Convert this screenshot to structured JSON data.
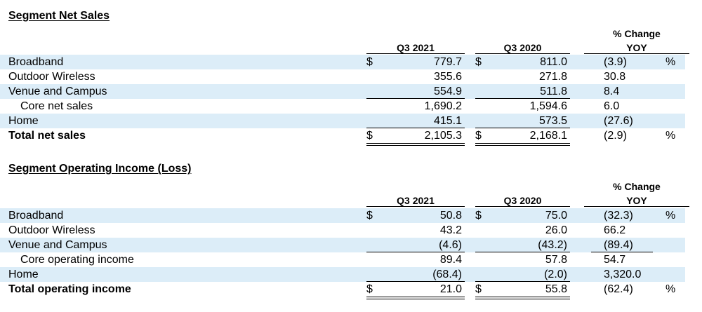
{
  "sales": {
    "title": "Segment Net Sales",
    "pct_header": "% Change",
    "yoy_header": "YOY",
    "q1_header": "Q3 2021",
    "q2_header": "Q3 2020",
    "rows": [
      {
        "label": "Broadband",
        "dol1": "$",
        "v1": "779.7",
        "dol2": "$",
        "v2": "811.0",
        "pct": "(3.9)",
        "pctsign": "%"
      },
      {
        "label": "Outdoor Wireless",
        "dol1": "",
        "v1": "355.6",
        "dol2": "",
        "v2": "271.8",
        "pct": "30.8",
        "pctsign": ""
      },
      {
        "label": "Venue and Campus",
        "dol1": "",
        "v1": "554.9",
        "dol2": "",
        "v2": "511.8",
        "pct": "8.4",
        "pctsign": ""
      },
      {
        "label": "Core net sales",
        "dol1": "",
        "v1": "1,690.2",
        "dol2": "",
        "v2": "1,594.6",
        "pct": "6.0",
        "pctsign": ""
      },
      {
        "label": "Home",
        "dol1": "",
        "v1": "415.1",
        "dol2": "",
        "v2": "573.5",
        "pct": "(27.6)",
        "pctsign": ""
      },
      {
        "label": "Total net sales",
        "dol1": "$",
        "v1": "2,105.3",
        "dol2": "$",
        "v2": "2,168.1",
        "pct": "(2.9)",
        "pctsign": "%"
      }
    ]
  },
  "income": {
    "title": "Segment Operating Income (Loss)",
    "pct_header": "% Change",
    "yoy_header": "YOY",
    "q1_header": "Q3 2021",
    "q2_header": "Q3 2020",
    "rows": [
      {
        "label": "Broadband",
        "dol1": "$",
        "v1": "50.8",
        "dol2": "$",
        "v2": "75.0",
        "pct": "(32.3)",
        "pctsign": "%"
      },
      {
        "label": "Outdoor Wireless",
        "dol1": "",
        "v1": "43.2",
        "dol2": "",
        "v2": "26.0",
        "pct": "66.2",
        "pctsign": ""
      },
      {
        "label": "Venue and Campus",
        "dol1": "",
        "v1": "(4.6)",
        "dol2": "",
        "v2": "(43.2)",
        "pct": "(89.4)",
        "pctsign": ""
      },
      {
        "label": "Core operating income",
        "dol1": "",
        "v1": "89.4",
        "dol2": "",
        "v2": "57.8",
        "pct": "54.7",
        "pctsign": ""
      },
      {
        "label": "Home",
        "dol1": "",
        "v1": "(68.4)",
        "dol2": "",
        "v2": "(2.0)",
        "pct": "3,320.0",
        "pctsign": ""
      },
      {
        "label": "Total operating income",
        "dol1": "$",
        "v1": "21.0",
        "dol2": "$",
        "v2": "55.8",
        "pct": "(62.4)",
        "pctsign": "%"
      }
    ]
  }
}
